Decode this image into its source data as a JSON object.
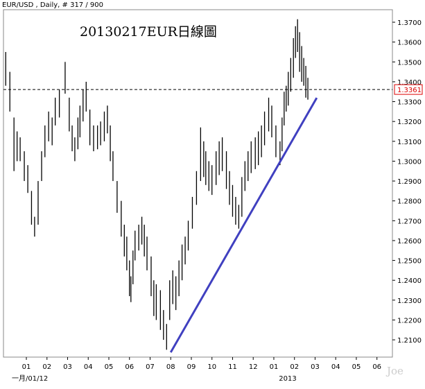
{
  "chart_data": {
    "type": "hl-bar",
    "header": "EUR/USD , Daily, # 317 / 900",
    "title": "20130217EUR日線圖",
    "watermark": "Joe",
    "x_sublabels": [
      {
        "value": 0.5,
        "label": "一月/01/12"
      },
      {
        "value": 13,
        "label": "2013"
      }
    ],
    "xlim": [
      -0.11,
      18.75
    ],
    "xticks": [
      {
        "value": 1,
        "label": "01"
      },
      {
        "value": 2,
        "label": "02"
      },
      {
        "value": 3,
        "label": "03"
      },
      {
        "value": 4,
        "label": "04"
      },
      {
        "value": 5,
        "label": "05"
      },
      {
        "value": 6,
        "label": "06"
      },
      {
        "value": 7,
        "label": "07"
      },
      {
        "value": 8,
        "label": "08"
      },
      {
        "value": 9,
        "label": "09"
      },
      {
        "value": 10,
        "label": "10"
      },
      {
        "value": 11,
        "label": "11"
      },
      {
        "value": 12,
        "label": "12"
      },
      {
        "value": 13,
        "label": "01"
      },
      {
        "value": 14,
        "label": "02"
      },
      {
        "value": 15,
        "label": "03"
      },
      {
        "value": 16,
        "label": "04"
      },
      {
        "value": 17,
        "label": "05"
      },
      {
        "value": 18,
        "label": "06"
      }
    ],
    "ylim": [
      1.2013,
      1.3763
    ],
    "yticks": [
      {
        "value": 1.21,
        "label": "1.2100"
      },
      {
        "value": 1.22,
        "label": "1.2200"
      },
      {
        "value": 1.23,
        "label": "1.2300"
      },
      {
        "value": 1.24,
        "label": "1.2400"
      },
      {
        "value": 1.25,
        "label": "1.2500"
      },
      {
        "value": 1.26,
        "label": "1.2600"
      },
      {
        "value": 1.27,
        "label": "1.2700"
      },
      {
        "value": 1.28,
        "label": "1.2800"
      },
      {
        "value": 1.29,
        "label": "1.2900"
      },
      {
        "value": 1.3,
        "label": "1.3000"
      },
      {
        "value": 1.31,
        "label": "1.3100"
      },
      {
        "value": 1.32,
        "label": "1.3200"
      },
      {
        "value": 1.33,
        "label": "1.3300"
      },
      {
        "value": 1.34,
        "label": "1.3400"
      },
      {
        "value": 1.35,
        "label": "1.3500"
      },
      {
        "value": 1.36,
        "label": "1.3600"
      },
      {
        "value": 1.37,
        "label": "1.3700"
      }
    ],
    "current_price": {
      "value": 1.3361,
      "label": "1.3361"
    },
    "trendline": {
      "x": [
        8.0,
        15.08
      ],
      "y": [
        1.2037,
        1.3319
      ],
      "color": "#4040c0"
    },
    "color": "#000000",
    "x": [
      0.0,
      0.2,
      0.4,
      0.55,
      0.7,
      0.9,
      1.07,
      1.25,
      1.4,
      1.57,
      1.74,
      1.9,
      2.08,
      2.25,
      2.4,
      2.6,
      2.88,
      3.08,
      3.22,
      3.35,
      3.5,
      3.6,
      3.75,
      3.9,
      4.08,
      4.26,
      4.45,
      4.6,
      4.78,
      4.93,
      5.07,
      5.2,
      5.4,
      5.6,
      5.75,
      5.87,
      6.0,
      6.07,
      6.17,
      6.27,
      6.45,
      6.6,
      6.72,
      6.85,
      7.05,
      7.18,
      7.3,
      7.5,
      7.65,
      7.8,
      7.95,
      8.1,
      8.25,
      8.4,
      8.55,
      8.7,
      8.85,
      9.05,
      9.25,
      9.45,
      9.6,
      9.7,
      9.85,
      10.0,
      10.2,
      10.35,
      10.5,
      10.7,
      10.85,
      11.0,
      11.15,
      11.3,
      11.45,
      11.6,
      11.75,
      11.9,
      12.1,
      12.25,
      12.4,
      12.55,
      12.75,
      12.9,
      13.1,
      13.3,
      13.4,
      13.5,
      13.6,
      13.7,
      13.82,
      13.95,
      14.05,
      14.15,
      14.25,
      14.35,
      14.45,
      14.55,
      14.65
    ],
    "high": [
      1.355,
      1.345,
      1.322,
      1.315,
      1.312,
      1.305,
      1.298,
      1.285,
      1.272,
      1.29,
      1.305,
      1.318,
      1.325,
      1.322,
      1.332,
      1.336,
      1.35,
      1.332,
      1.318,
      1.312,
      1.322,
      1.328,
      1.336,
      1.34,
      1.326,
      1.318,
      1.318,
      1.32,
      1.325,
      1.328,
      1.318,
      1.305,
      1.29,
      1.28,
      1.268,
      1.262,
      1.25,
      1.242,
      1.255,
      1.265,
      1.268,
      1.272,
      1.268,
      1.262,
      1.252,
      1.24,
      1.238,
      1.235,
      1.225,
      1.218,
      1.24,
      1.245,
      1.242,
      1.25,
      1.258,
      1.262,
      1.27,
      1.282,
      1.295,
      1.317,
      1.31,
      1.305,
      1.3,
      1.298,
      1.305,
      1.31,
      1.312,
      1.305,
      1.295,
      1.288,
      1.282,
      1.278,
      1.292,
      1.3,
      1.305,
      1.31,
      1.312,
      1.315,
      1.318,
      1.325,
      1.332,
      1.328,
      1.318,
      1.31,
      1.322,
      1.335,
      1.338,
      1.345,
      1.352,
      1.362,
      1.368,
      1.3715,
      1.365,
      1.358,
      1.352,
      1.348,
      1.342
    ],
    "low": [
      1.338,
      1.325,
      1.295,
      1.3,
      1.3,
      1.29,
      1.284,
      1.268,
      1.262,
      1.268,
      1.29,
      1.302,
      1.31,
      1.308,
      1.318,
      1.322,
      1.334,
      1.315,
      1.305,
      1.3,
      1.306,
      1.312,
      1.32,
      1.325,
      1.308,
      1.305,
      1.306,
      1.308,
      1.31,
      1.314,
      1.3,
      1.29,
      1.274,
      1.262,
      1.252,
      1.245,
      1.232,
      1.229,
      1.238,
      1.25,
      1.255,
      1.258,
      1.252,
      1.245,
      1.232,
      1.222,
      1.22,
      1.215,
      1.21,
      1.205,
      1.22,
      1.228,
      1.225,
      1.232,
      1.24,
      1.248,
      1.255,
      1.266,
      1.278,
      1.29,
      1.292,
      1.288,
      1.285,
      1.283,
      1.288,
      1.293,
      1.295,
      1.286,
      1.278,
      1.272,
      1.268,
      1.266,
      1.272,
      1.285,
      1.29,
      1.294,
      1.296,
      1.298,
      1.302,
      1.308,
      1.315,
      1.312,
      1.302,
      1.298,
      1.305,
      1.318,
      1.325,
      1.328,
      1.335,
      1.342,
      1.352,
      1.355,
      1.345,
      1.34,
      1.338,
      1.332,
      1.331
    ]
  }
}
